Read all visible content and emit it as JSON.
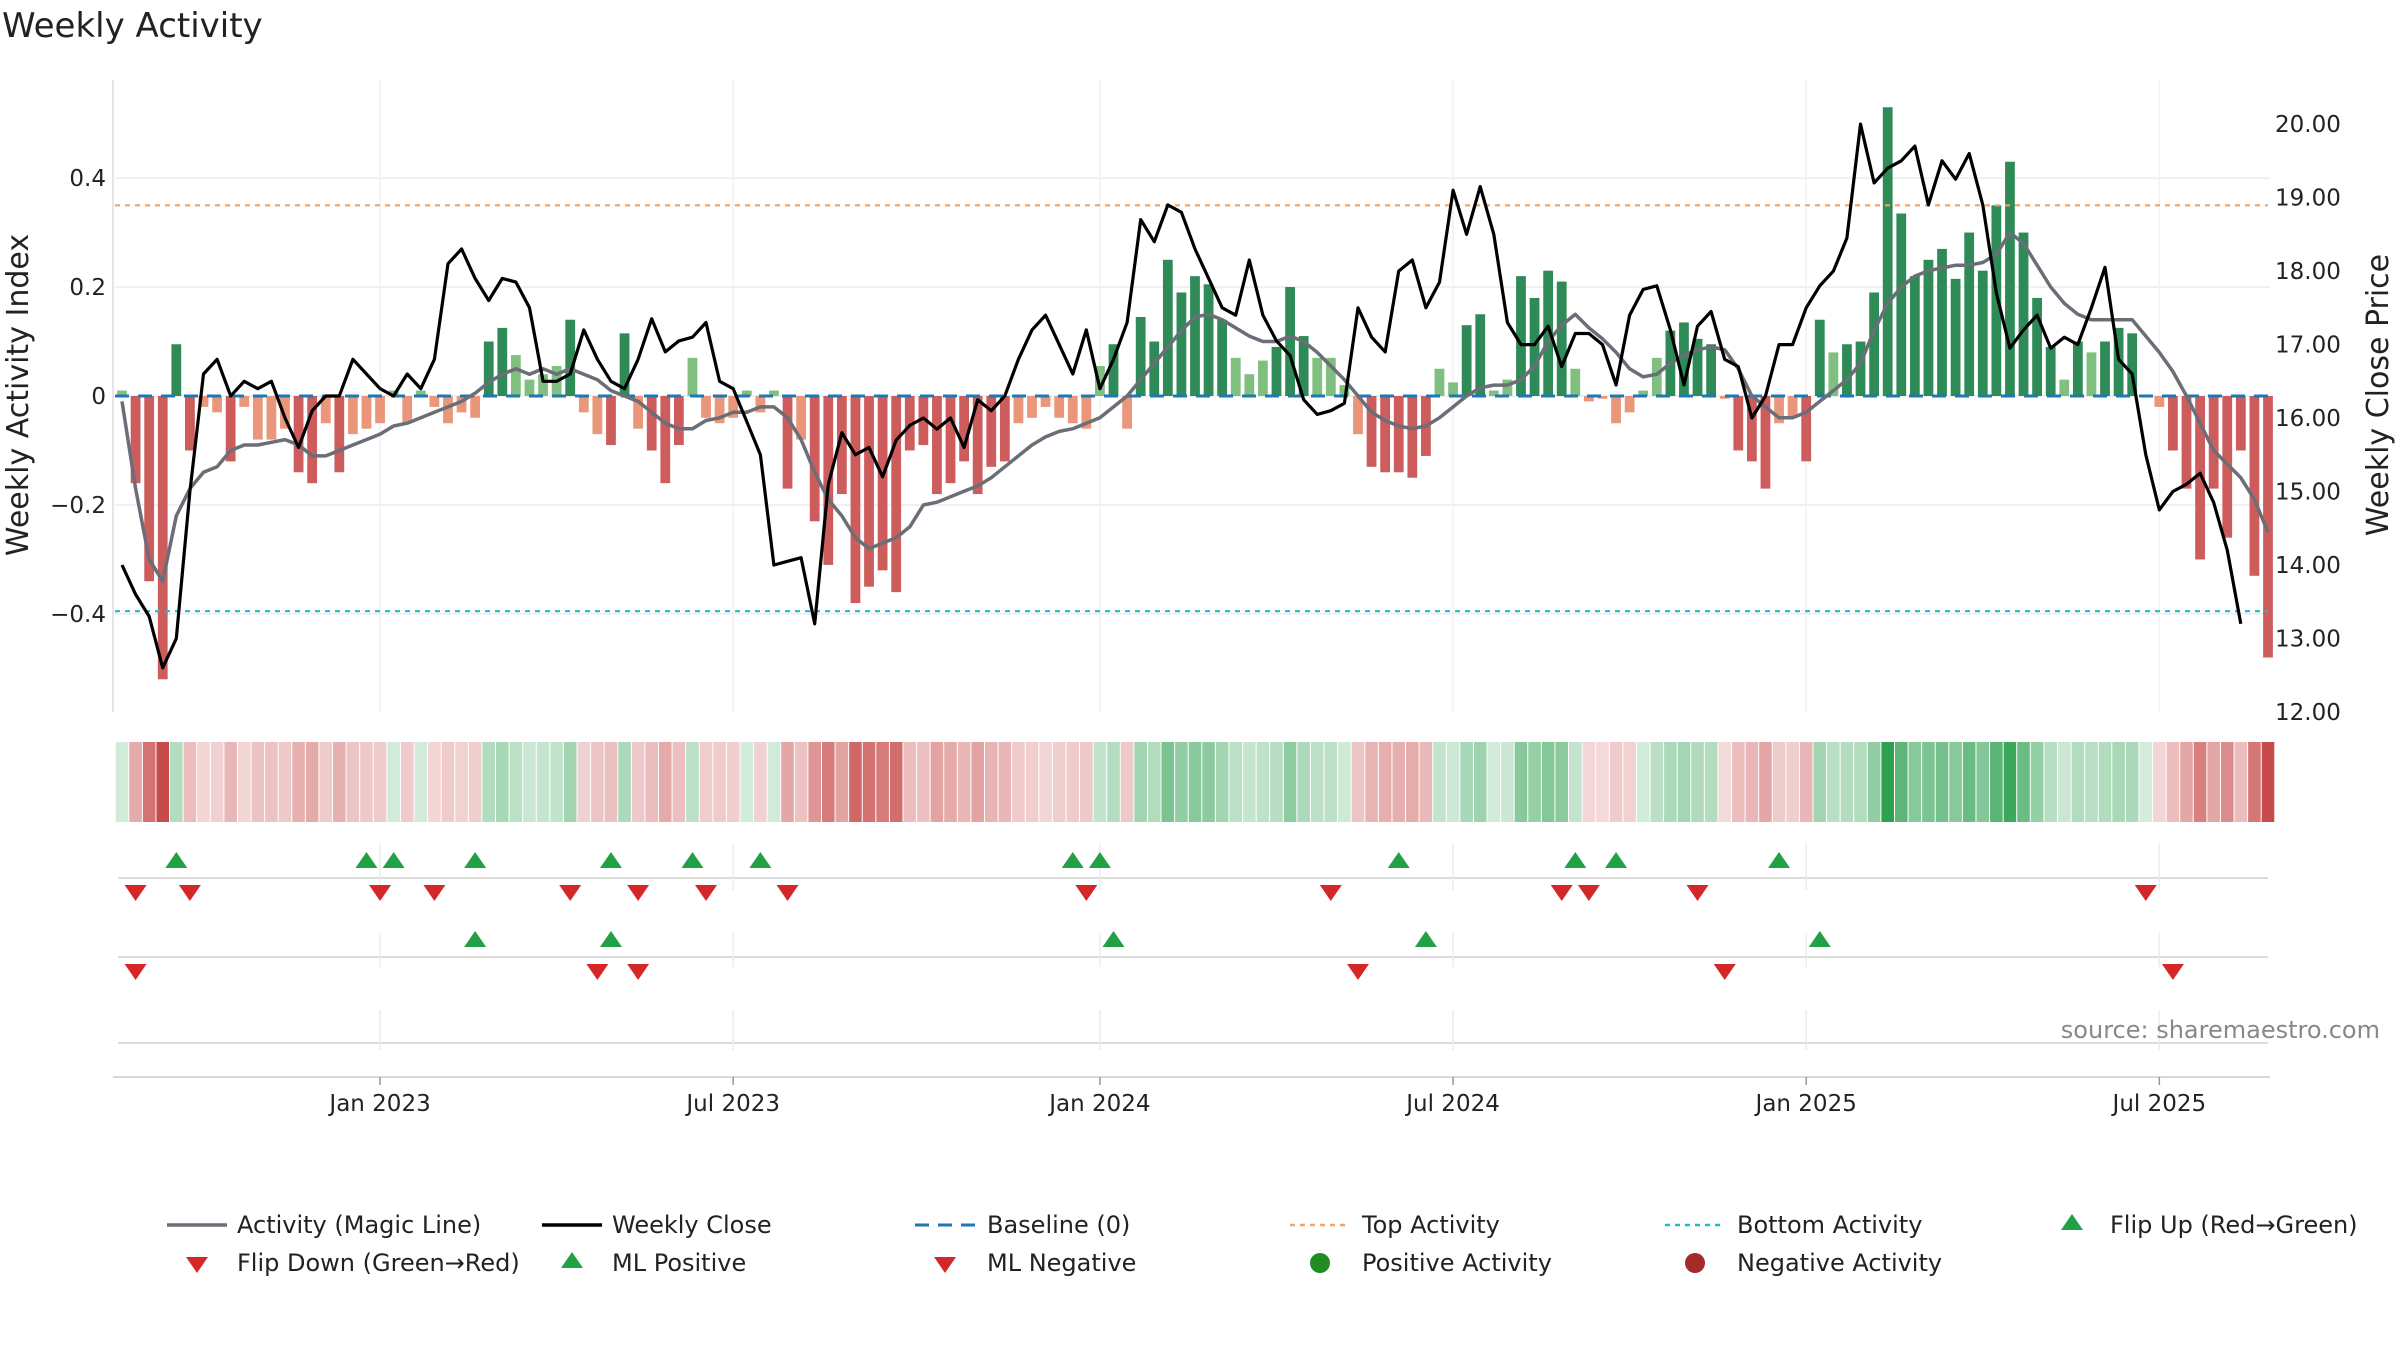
{
  "title": "Weekly Activity",
  "source": "source: sharemaestro.com",
  "colors": {
    "green_strong": "#2e8b57",
    "green_light": "#7fbf7f",
    "red_strong": "#cd5c5c",
    "red_light": "#e9967a",
    "magic_line": "#6b6e76",
    "close_line": "#000000",
    "baseline": "#1f77b4",
    "top_line": "#f4a460",
    "bottom_line": "#17becf",
    "marker_green": "#22a045",
    "marker_red": "#d62728",
    "positive_dot": "#228b22",
    "negative_dot": "#a52a2a"
  },
  "chart_data": {
    "type": "bar",
    "title": "Weekly Activity",
    "ylabel": "Weekly Activity Index",
    "y2label": "Weekly Close Price",
    "ylim": [
      -0.58,
      0.58
    ],
    "y2lim": [
      12.0,
      20.6
    ],
    "yticks": [
      {
        "v": 0.4,
        "label": "0.4"
      },
      {
        "v": 0.2,
        "label": "0.2"
      },
      {
        "v": 0,
        "label": "0"
      },
      {
        "v": -0.2,
        "label": "−0.2"
      },
      {
        "v": -0.4,
        "label": "−0.4"
      }
    ],
    "y2ticks": [
      {
        "v": 20,
        "label": "20.00"
      },
      {
        "v": 19,
        "label": "19.00"
      },
      {
        "v": 18,
        "label": "18.00"
      },
      {
        "v": 17,
        "label": "17.00"
      },
      {
        "v": 16,
        "label": "16.00"
      },
      {
        "v": 15,
        "label": "15.00"
      },
      {
        "v": 14,
        "label": "14.00"
      },
      {
        "v": 13,
        "label": "13.00"
      },
      {
        "v": 12,
        "label": "12.00"
      }
    ],
    "xticks": [
      {
        "week": 19,
        "label": "Jan 2023"
      },
      {
        "week": 45,
        "label": "Jul 2023"
      },
      {
        "week": 72,
        "label": "Jan 2024"
      },
      {
        "week": 98,
        "label": "Jul 2024"
      },
      {
        "week": 124,
        "label": "Jan 2025"
      },
      {
        "week": 150,
        "label": "Jul 2025"
      }
    ],
    "top_activity": 0.35,
    "bottom_activity": -0.395,
    "baseline": 0,
    "activity": [
      0.01,
      -0.16,
      -0.34,
      -0.52,
      0.095,
      -0.1,
      -0.02,
      -0.03,
      -0.12,
      -0.02,
      -0.08,
      -0.08,
      -0.06,
      -0.14,
      -0.16,
      -0.05,
      -0.14,
      -0.07,
      -0.06,
      -0.05,
      0.01,
      -0.05,
      0.01,
      -0.02,
      -0.05,
      -0.03,
      -0.04,
      0.1,
      0.125,
      0.075,
      0.03,
      0.04,
      0.055,
      0.14,
      -0.03,
      -0.07,
      -0.09,
      0.115,
      -0.06,
      -0.1,
      -0.16,
      -0.09,
      0.07,
      -0.04,
      -0.05,
      -0.04,
      0.01,
      -0.03,
      0.01,
      -0.17,
      -0.08,
      -0.23,
      -0.31,
      -0.18,
      -0.38,
      -0.35,
      -0.32,
      -0.36,
      -0.1,
      -0.09,
      -0.18,
      -0.16,
      -0.12,
      -0.18,
      -0.13,
      -0.12,
      -0.05,
      -0.04,
      -0.02,
      -0.04,
      -0.05,
      -0.06,
      0.055,
      0.095,
      -0.06,
      0.145,
      0.1,
      0.25,
      0.19,
      0.22,
      0.205,
      0.14,
      0.07,
      0.04,
      0.065,
      0.09,
      0.2,
      0.11,
      0.07,
      0.07,
      0.02,
      -0.07,
      -0.13,
      -0.14,
      -0.14,
      -0.15,
      -0.11,
      0.05,
      0.025,
      0.13,
      0.15,
      0.01,
      0.03,
      0.22,
      0.18,
      0.23,
      0.21,
      0.05,
      -0.01,
      -0.005,
      -0.05,
      -0.03,
      0.01,
      0.07,
      0.12,
      0.135,
      0.105,
      0.095,
      -0.005,
      -0.1,
      -0.12,
      -0.17,
      -0.05,
      -0.04,
      -0.12,
      0.14,
      0.08,
      0.095,
      0.1,
      0.19,
      0.53,
      0.335,
      0.22,
      0.25,
      0.27,
      0.215,
      0.3,
      0.23,
      0.35,
      0.43,
      0.3,
      0.18,
      0.09,
      0.03,
      0.1,
      0.08,
      0.1,
      0.125,
      0.115,
      0.0,
      -0.02,
      -0.1,
      -0.17,
      -0.3,
      -0.17,
      -0.26,
      -0.1,
      -0.33,
      -0.48
    ],
    "magic_line": [
      -0.01,
      -0.17,
      -0.3,
      -0.34,
      -0.22,
      -0.17,
      -0.14,
      -0.13,
      -0.1,
      -0.09,
      -0.09,
      -0.085,
      -0.08,
      -0.09,
      -0.11,
      -0.11,
      -0.1,
      -0.09,
      -0.08,
      -0.07,
      -0.055,
      -0.05,
      -0.04,
      -0.03,
      -0.02,
      -0.01,
      0.005,
      0.025,
      0.04,
      0.05,
      0.04,
      0.05,
      0.04,
      0.05,
      0.04,
      0.03,
      0.01,
      0.0,
      -0.01,
      -0.03,
      -0.05,
      -0.06,
      -0.06,
      -0.045,
      -0.04,
      -0.03,
      -0.03,
      -0.02,
      -0.02,
      -0.04,
      -0.08,
      -0.14,
      -0.19,
      -0.22,
      -0.26,
      -0.28,
      -0.27,
      -0.26,
      -0.24,
      -0.2,
      -0.195,
      -0.185,
      -0.175,
      -0.165,
      -0.15,
      -0.13,
      -0.11,
      -0.09,
      -0.075,
      -0.065,
      -0.06,
      -0.05,
      -0.04,
      -0.02,
      0.0,
      0.03,
      0.06,
      0.09,
      0.12,
      0.145,
      0.15,
      0.14,
      0.125,
      0.11,
      0.1,
      0.1,
      0.11,
      0.1,
      0.08,
      0.055,
      0.03,
      0.0,
      -0.03,
      -0.045,
      -0.055,
      -0.06,
      -0.055,
      -0.04,
      -0.02,
      0.0,
      0.015,
      0.02,
      0.02,
      0.03,
      0.055,
      0.1,
      0.13,
      0.15,
      0.125,
      0.105,
      0.08,
      0.05,
      0.035,
      0.04,
      0.06,
      0.075,
      0.085,
      0.09,
      0.085,
      0.05,
      0.0,
      -0.02,
      -0.04,
      -0.04,
      -0.03,
      -0.01,
      0.01,
      0.03,
      0.06,
      0.12,
      0.17,
      0.2,
      0.22,
      0.23,
      0.235,
      0.24,
      0.24,
      0.245,
      0.26,
      0.3,
      0.28,
      0.24,
      0.2,
      0.17,
      0.15,
      0.14,
      0.14,
      0.14,
      0.14,
      0.11,
      0.08,
      0.045,
      0.0,
      -0.05,
      -0.1,
      -0.125,
      -0.15,
      -0.19,
      -0.25
    ],
    "weekly_close": [
      14.0,
      13.6,
      13.3,
      12.6,
      13.0,
      15.0,
      16.6,
      16.8,
      16.3,
      16.5,
      16.4,
      16.5,
      16.0,
      15.6,
      16.1,
      16.3,
      16.3,
      16.8,
      16.6,
      16.4,
      16.3,
      16.6,
      16.4,
      16.8,
      18.1,
      18.3,
      17.9,
      17.6,
      17.9,
      17.85,
      17.5,
      16.5,
      16.5,
      16.6,
      17.2,
      16.8,
      16.5,
      16.4,
      16.8,
      17.35,
      16.9,
      17.05,
      17.1,
      17.3,
      16.5,
      16.4,
      15.95,
      15.5,
      14.0,
      14.05,
      14.1,
      13.2,
      15.1,
      15.8,
      15.5,
      15.6,
      15.2,
      15.7,
      15.9,
      16.0,
      15.85,
      16.0,
      15.6,
      16.25,
      16.1,
      16.3,
      16.8,
      17.2,
      17.4,
      17.0,
      16.6,
      17.2,
      16.4,
      16.8,
      17.3,
      18.7,
      18.4,
      18.9,
      18.8,
      18.3,
      17.9,
      17.5,
      17.4,
      18.15,
      17.4,
      17.05,
      16.85,
      16.25,
      16.05,
      16.1,
      16.2,
      17.5,
      17.1,
      16.9,
      18.0,
      18.15,
      17.5,
      17.85,
      19.1,
      18.5,
      19.15,
      18.5,
      17.3,
      17.0,
      17.0,
      17.25,
      16.7,
      17.15,
      17.15,
      17.0,
      16.45,
      17.4,
      17.75,
      17.8,
      17.2,
      16.45,
      17.25,
      17.45,
      16.8,
      16.7,
      16.0,
      16.3,
      17.0,
      17.0,
      17.5,
      17.8,
      18.0,
      18.45,
      20.0,
      19.2,
      19.4,
      19.5,
      19.7,
      18.9,
      19.5,
      19.25,
      19.6,
      18.9,
      17.7,
      16.95,
      17.2,
      17.4,
      16.95,
      17.1,
      17.0,
      17.5,
      18.05,
      16.8,
      16.6,
      15.5,
      14.75,
      15.0,
      15.1,
      15.25,
      14.85,
      14.2,
      13.2
    ]
  },
  "legend": {
    "magic_line": "Activity (Magic Line)",
    "weekly_close": "Weekly Close",
    "baseline": "Baseline (0)",
    "top_activity": "Top Activity",
    "bottom_activity": "Bottom Activity",
    "flip_up": "Flip Up (Red→Green)",
    "flip_down": "Flip Down (Green→Red)",
    "ml_positive": "ML Positive",
    "ml_negative": "ML Negative",
    "positive_activity": "Positive Activity",
    "negative_activity": "Negative Activity"
  },
  "events": {
    "flip_up": [
      4,
      18,
      20,
      26,
      36,
      42,
      47,
      70,
      72,
      94,
      107,
      110,
      122
    ],
    "flip_down": [
      1,
      5,
      19,
      23,
      33,
      38,
      43,
      49,
      71,
      89,
      106,
      108,
      116,
      149
    ],
    "ml_positive": [
      26,
      36,
      73,
      96,
      125
    ],
    "ml_negative": [
      1,
      35,
      38,
      91,
      118,
      151
    ]
  }
}
